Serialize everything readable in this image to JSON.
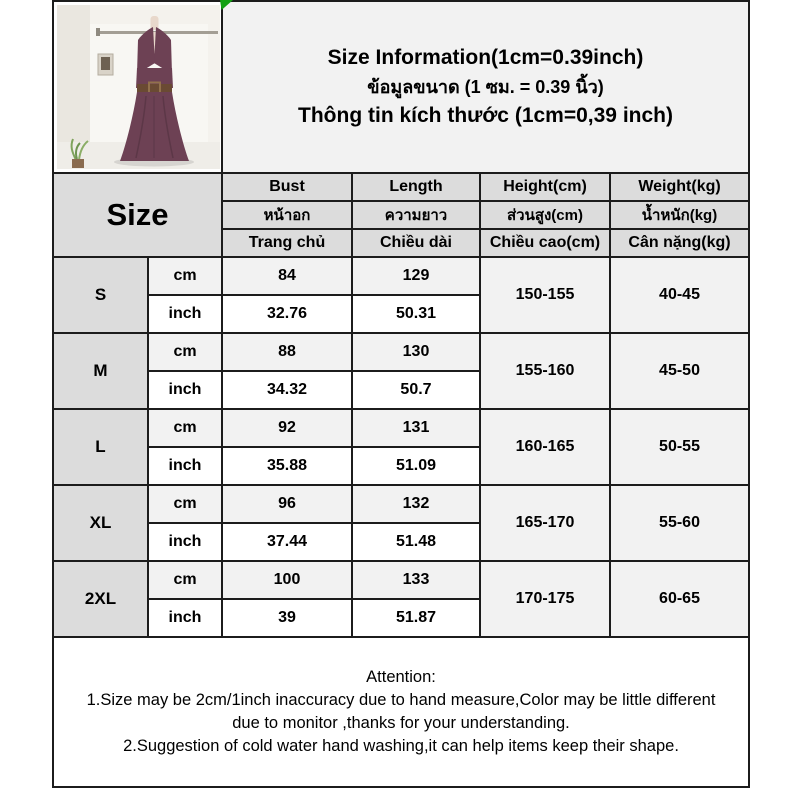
{
  "title": {
    "en": "Size Information(1cm=0.39inch)",
    "th": "ข้อมูลขนาด (1 ซม. = 0.39 นิ้ว)",
    "vi": "Thông tin kích thước (1cm=0,39 inch)"
  },
  "product_image": {
    "description": "sleeveless purple halter maxi dress with brown belt on mannequin in white room with clothes rail and small plant",
    "dress_color": "#6d4154",
    "belt_color": "#6a4a33"
  },
  "table": {
    "size_header": "Size",
    "unit_cm": "cm",
    "unit_inch": "inch",
    "columns": [
      {
        "en": "Bust",
        "th": "หน้าอก",
        "vi": "Trang chủ"
      },
      {
        "en": "Length",
        "th": "ความยาว",
        "vi": "Chiều dài"
      },
      {
        "en": "Height(cm)",
        "th": "ส่วนสูง(cm)",
        "vi": "Chiều cao(cm)"
      },
      {
        "en": "Weight(kg)",
        "th": "น้ำหนัก(kg)",
        "vi": "Cân nặng(kg)"
      }
    ],
    "rows": [
      {
        "size": "S",
        "bust_cm": "84",
        "length_cm": "129",
        "bust_inch": "32.76",
        "length_inch": "50.31",
        "height": "150-155",
        "weight": "40-45"
      },
      {
        "size": "M",
        "bust_cm": "88",
        "length_cm": "130",
        "bust_inch": "34.32",
        "length_inch": "50.7",
        "height": "155-160",
        "weight": "45-50"
      },
      {
        "size": "L",
        "bust_cm": "92",
        "length_cm": "131",
        "bust_inch": "35.88",
        "length_inch": "51.09",
        "height": "160-165",
        "weight": "50-55"
      },
      {
        "size": "XL",
        "bust_cm": "96",
        "length_cm": "132",
        "bust_inch": "37.44",
        "length_inch": "51.48",
        "height": "165-170",
        "weight": "55-60"
      },
      {
        "size": "2XL",
        "bust_cm": "100",
        "length_cm": "133",
        "bust_inch": "39",
        "length_inch": "51.87",
        "height": "170-175",
        "weight": "60-65"
      }
    ]
  },
  "attention": {
    "heading": "Attention:",
    "lines": [
      "1.Size may be 2cm/1inch inaccuracy due to hand measure,Color may be little different",
      "due to monitor ,thanks for your understanding.",
      "2.Suggestion of cold water hand washing,it can help items keep their shape."
    ]
  },
  "colors": {
    "border": "#1c1c1c",
    "header_bg": "#dcdcdc",
    "band_bg": "#f2f2f2",
    "flag_green": "#12a112"
  }
}
